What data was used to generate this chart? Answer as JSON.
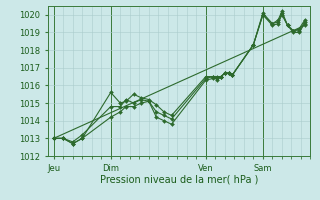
{
  "background_color": "#cce8e8",
  "grid_color": "#aacccc",
  "line_color": "#2d6a2d",
  "marker_color": "#2d6a2d",
  "xlabel": "Pression niveau de la mer( hPa )",
  "ylim": [
    1012,
    1020.5
  ],
  "yticks": [
    1012,
    1013,
    1014,
    1015,
    1016,
    1017,
    1018,
    1019,
    1020
  ],
  "day_labels": [
    "Jeu",
    "Dim",
    "Ven",
    "Sam"
  ],
  "day_positions": [
    0,
    3,
    8,
    11
  ],
  "xlim": [
    -0.3,
    13.5
  ],
  "series1_x": [
    0,
    0.5,
    1,
    1.5,
    3,
    3.5,
    3.8,
    4.2,
    4.6,
    5,
    5.4,
    5.8,
    6.2,
    8,
    8.4,
    8.6,
    8.8,
    9.0,
    9.2,
    9.4,
    10.5,
    11,
    11.5,
    11.8,
    12,
    12.3,
    12.6,
    12.9,
    13.2
  ],
  "series1_y": [
    1013.0,
    1013.0,
    1012.7,
    1013.0,
    1015.6,
    1015.0,
    1015.1,
    1015.5,
    1015.3,
    1015.2,
    1014.9,
    1014.5,
    1014.3,
    1016.5,
    1016.5,
    1016.3,
    1016.5,
    1016.7,
    1016.7,
    1016.6,
    1018.3,
    1020.1,
    1019.5,
    1019.7,
    1020.2,
    1019.4,
    1019.1,
    1019.2,
    1019.7
  ],
  "series2_x": [
    0,
    0.5,
    1,
    1.5,
    3,
    3.5,
    3.8,
    4.2,
    4.6,
    5,
    5.4,
    5.8,
    6.2,
    8,
    8.4,
    8.6,
    8.8,
    9.0,
    9.2,
    9.4,
    10.5,
    11,
    11.5,
    11.8,
    12,
    12.3,
    12.6,
    12.9,
    13.2
  ],
  "series2_y": [
    1013.0,
    1013.0,
    1012.8,
    1013.2,
    1014.8,
    1014.8,
    1015.2,
    1015.0,
    1015.2,
    1015.1,
    1014.5,
    1014.3,
    1014.1,
    1016.4,
    1016.5,
    1016.5,
    1016.5,
    1016.7,
    1016.7,
    1016.6,
    1018.3,
    1020.0,
    1019.5,
    1019.6,
    1020.1,
    1019.4,
    1019.1,
    1019.1,
    1019.6
  ],
  "series3_x": [
    0,
    0.5,
    1,
    1.5,
    3,
    3.5,
    3.8,
    4.2,
    4.6,
    5,
    5.4,
    5.8,
    6.2,
    8,
    8.4,
    8.6,
    8.8,
    9.0,
    9.2,
    9.4,
    10.5,
    11,
    11.5,
    11.8,
    12,
    12.3,
    12.6,
    12.9,
    13.2
  ],
  "series3_y": [
    1013.0,
    1013.0,
    1012.7,
    1013.0,
    1014.2,
    1014.5,
    1014.8,
    1014.8,
    1015.0,
    1015.1,
    1014.2,
    1014.0,
    1013.8,
    1016.3,
    1016.4,
    1016.4,
    1016.5,
    1016.7,
    1016.7,
    1016.6,
    1018.3,
    1020.0,
    1019.4,
    1019.5,
    1020.0,
    1019.4,
    1019.0,
    1019.0,
    1019.5
  ],
  "series4_x": [
    0,
    13.2
  ],
  "series4_y": [
    1013.0,
    1019.4
  ]
}
